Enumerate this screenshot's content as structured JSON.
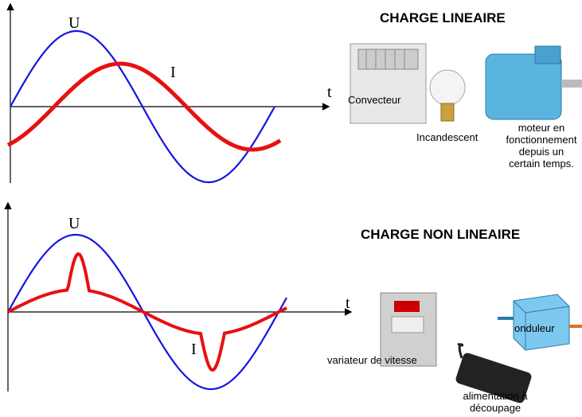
{
  "panels": [
    {
      "title": "CHARGE LINEAIRE",
      "u_label": "U",
      "i_label": "I",
      "t_label": "t",
      "devices": [
        {
          "label": "Convecteur"
        },
        {
          "label": "Incandescent"
        },
        {
          "label_lines": [
            "moteur en",
            "fonctionnement",
            "depuis un",
            "certain temps."
          ]
        }
      ]
    },
    {
      "title": "CHARGE NON LINEAIRE",
      "u_label": "U",
      "i_label": "I",
      "t_label": "t",
      "devices": [
        {
          "label": "variateur de vitesse"
        },
        {
          "label": "onduleur"
        },
        {
          "label_lines": [
            "alimentation à",
            "découpage"
          ]
        }
      ]
    }
  ]
}
